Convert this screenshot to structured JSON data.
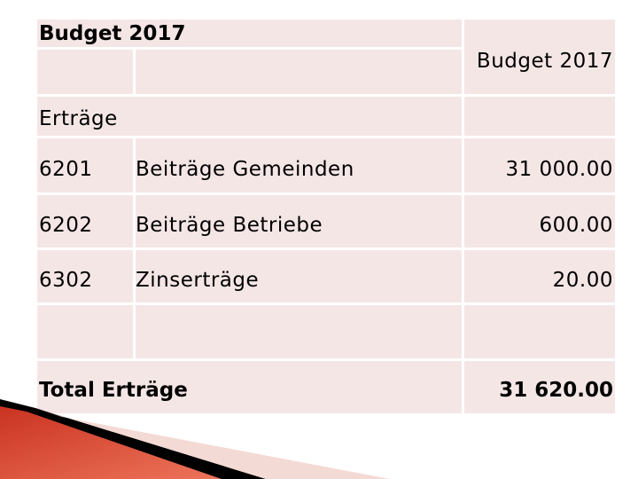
{
  "table": {
    "title": "Budget 2017",
    "column_header": "Budget 2017",
    "section_label": "Erträge",
    "rows": [
      {
        "code": "6201",
        "label": "Beiträge Gemeinden",
        "amount": "31 000.00"
      },
      {
        "code": "6202",
        "label": "Beiträge Betriebe",
        "amount": "600.00"
      },
      {
        "code": "6302",
        "label": "Zinserträge",
        "amount": "20.00"
      }
    ],
    "total_label": "Total Erträge",
    "total_amount": "31 620.00"
  },
  "colors": {
    "cell_background": "#f5e6e6",
    "gridline": "#ffffff",
    "decoration_red": "#e8503a",
    "decoration_black": "#000000"
  }
}
